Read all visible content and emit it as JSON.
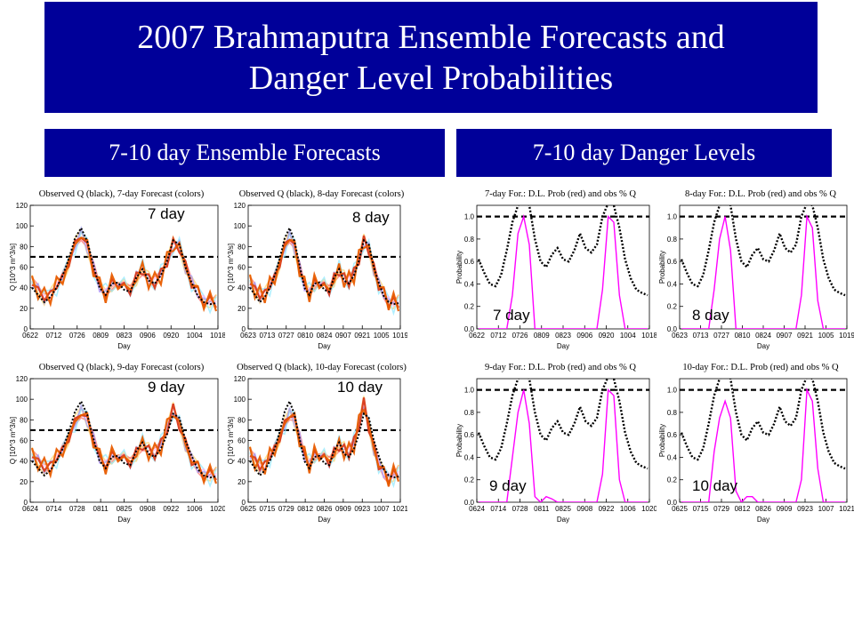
{
  "title": {
    "line1": "2007 Brahmaputra Ensemble Forecasts and",
    "line2": "Danger Level Probabilities"
  },
  "sections": {
    "left": "7-10 day Ensemble Forecasts",
    "right": "7-10 day Danger Levels"
  },
  "colors": {
    "banner": "#000099",
    "observed": "#000000",
    "danger_level": "#000000",
    "probability": "#ff00ff",
    "ensemble": [
      "#f2a36b",
      "#ff6b6b",
      "#ffd36b",
      "#8fe8ff",
      "#ffb0f0",
      "#9b9bff",
      "#d83a1a",
      "#e85c00"
    ]
  },
  "chart_data": [
    {
      "type": "line",
      "title": "Observed Q (black), 7-day Forecast (colors)",
      "label": "7 day",
      "xlabel": "Day",
      "ylabel": "Q [10^3 m^3/s]",
      "ylim": [
        0,
        120
      ],
      "yticks": [
        "0",
        "20",
        "40",
        "60",
        "80",
        "100",
        "120"
      ],
      "xticks": [
        "0622",
        "0712",
        "0726",
        "0809",
        "0823",
        "0906",
        "0920",
        "1004",
        "1018"
      ],
      "danger_level": 70,
      "observed_series": [
        40,
        33,
        26,
        31,
        40,
        52,
        68,
        88,
        98,
        85,
        62,
        40,
        33,
        44,
        45,
        38,
        36,
        50,
        58,
        47,
        44,
        52,
        66,
        86,
        82,
        60,
        45,
        32,
        26,
        24,
        25
      ],
      "forecast_series": [
        45,
        38,
        30,
        34,
        42,
        50,
        64,
        82,
        92,
        80,
        60,
        40,
        35,
        44,
        45,
        40,
        38,
        50,
        58,
        48,
        45,
        53,
        66,
        82,
        80,
        60,
        46,
        35,
        28,
        26,
        27
      ]
    },
    {
      "type": "line",
      "title": "Observed Q (black), 8-day Forecast (colors)",
      "label": "8 day",
      "xlabel": "Day",
      "ylabel": "Q [10^3 m^3/s]",
      "ylim": [
        0,
        120
      ],
      "yticks": [
        "0",
        "20",
        "40",
        "60",
        "80",
        "100",
        "120"
      ],
      "xticks": [
        "0623",
        "0713",
        "0727",
        "0810",
        "0824",
        "0907",
        "0921",
        "1005",
        "1019"
      ],
      "danger_level": 70,
      "observed_series": [
        40,
        33,
        26,
        31,
        40,
        52,
        68,
        88,
        98,
        85,
        62,
        40,
        33,
        44,
        45,
        38,
        36,
        50,
        58,
        47,
        44,
        52,
        66,
        86,
        82,
        60,
        45,
        32,
        26,
        24,
        25
      ],
      "forecast_series": [
        46,
        39,
        32,
        35,
        42,
        50,
        63,
        80,
        90,
        79,
        60,
        41,
        36,
        44,
        46,
        40,
        38,
        49,
        57,
        49,
        46,
        54,
        68,
        85,
        78,
        58,
        44,
        34,
        27,
        25,
        27
      ]
    },
    {
      "type": "line",
      "title": "Observed Q (black), 9-day Forecast (colors)",
      "label": "9 day",
      "xlabel": "Day",
      "ylabel": "Q [10^3 m^3/s]",
      "ylim": [
        0,
        120
      ],
      "yticks": [
        "0",
        "20",
        "40",
        "60",
        "80",
        "100",
        "120"
      ],
      "xticks": [
        "0624",
        "0714",
        "0728",
        "0811",
        "0825",
        "0908",
        "0922",
        "1006",
        "1020"
      ],
      "danger_level": 70,
      "observed_series": [
        40,
        33,
        26,
        31,
        40,
        52,
        68,
        88,
        98,
        85,
        62,
        40,
        33,
        44,
        45,
        38,
        36,
        50,
        58,
        47,
        44,
        52,
        66,
        86,
        82,
        60,
        45,
        32,
        26,
        24,
        25
      ],
      "forecast_series": [
        46,
        40,
        33,
        36,
        43,
        51,
        62,
        78,
        88,
        80,
        62,
        42,
        37,
        45,
        46,
        41,
        39,
        48,
        56,
        50,
        47,
        56,
        72,
        90,
        76,
        56,
        42,
        33,
        28,
        26,
        28
      ]
    },
    {
      "type": "line",
      "title": "Observed Q (black), 10-day Forecast (colors)",
      "label": "10 day",
      "xlabel": "Day",
      "ylabel": "Q [10^3 m^3/s]",
      "ylim": [
        0,
        120
      ],
      "yticks": [
        "0",
        "20",
        "40",
        "60",
        "80",
        "100",
        "120"
      ],
      "xticks": [
        "0625",
        "0715",
        "0729",
        "0812",
        "0826",
        "0909",
        "0923",
        "1007",
        "1021"
      ],
      "danger_level": 70,
      "observed_series": [
        40,
        33,
        26,
        31,
        40,
        52,
        68,
        88,
        98,
        85,
        62,
        40,
        33,
        44,
        45,
        38,
        36,
        50,
        58,
        47,
        44,
        52,
        66,
        86,
        82,
        60,
        45,
        32,
        26,
        24,
        25
      ],
      "forecast_series": [
        47,
        41,
        34,
        37,
        44,
        52,
        62,
        76,
        86,
        80,
        63,
        44,
        38,
        46,
        47,
        42,
        40,
        48,
        55,
        51,
        48,
        58,
        76,
        96,
        74,
        52,
        38,
        28,
        24,
        26,
        30
      ]
    },
    {
      "type": "line",
      "title": "7-day For.: D.L. Prob (red) and obs % Q",
      "label": "7 day",
      "xlabel": "Day",
      "ylabel": "Probability",
      "ylim": [
        0,
        1.1
      ],
      "yticks": [
        "0.0",
        "0.2",
        "0.4",
        "0.6",
        "0.8",
        "1.0"
      ],
      "xticks": [
        "0622",
        "0712",
        "0726",
        "0809",
        "0823",
        "0906",
        "0920",
        "1004",
        "1018"
      ],
      "danger_level": 1.0,
      "observed_pct_series": [
        0.62,
        0.5,
        0.4,
        0.38,
        0.48,
        0.7,
        0.95,
        1.1,
        1.15,
        1.1,
        0.8,
        0.6,
        0.55,
        0.66,
        0.72,
        0.62,
        0.6,
        0.7,
        0.85,
        0.72,
        0.68,
        0.75,
        1.0,
        1.12,
        1.1,
        0.9,
        0.62,
        0.45,
        0.35,
        0.32,
        0.3
      ],
      "probability_series": [
        0,
        0,
        0,
        0,
        0,
        0,
        0.3,
        0.85,
        1.0,
        0.75,
        0.0,
        0,
        0,
        0,
        0,
        0,
        0,
        0,
        0,
        0,
        0,
        0,
        0.35,
        1.0,
        0.95,
        0.3,
        0,
        0,
        0,
        0,
        0
      ]
    },
    {
      "type": "line",
      "title": "8-day For.: D.L. Prob (red) and obs % Q",
      "label": "8 day",
      "xlabel": "Day",
      "ylabel": "Probability",
      "ylim": [
        0,
        1.1
      ],
      "yticks": [
        "0.0",
        "0.2",
        "0.4",
        "0.6",
        "0.8",
        "1.0"
      ],
      "xticks": [
        "0623",
        "0713",
        "0727",
        "0810",
        "0824",
        "0907",
        "0921",
        "1005",
        "1019"
      ],
      "danger_level": 1.0,
      "observed_pct_series": [
        0.62,
        0.5,
        0.4,
        0.38,
        0.48,
        0.7,
        0.95,
        1.1,
        1.15,
        1.1,
        0.8,
        0.6,
        0.55,
        0.66,
        0.72,
        0.62,
        0.6,
        0.7,
        0.85,
        0.72,
        0.68,
        0.75,
        1.0,
        1.12,
        1.1,
        0.9,
        0.62,
        0.45,
        0.35,
        0.32,
        0.3
      ],
      "probability_series": [
        0,
        0,
        0,
        0,
        0,
        0,
        0.35,
        0.8,
        1.0,
        0.7,
        0.0,
        0,
        0,
        0,
        0,
        0,
        0,
        0,
        0,
        0,
        0,
        0,
        0.3,
        1.0,
        0.9,
        0.25,
        0,
        0,
        0,
        0,
        0
      ]
    },
    {
      "type": "line",
      "title": "9-day For.: D.L. Prob (red) and obs % Q",
      "label": "9 day",
      "xlabel": "Day",
      "ylabel": "Probability",
      "ylim": [
        0,
        1.1
      ],
      "yticks": [
        "0.0",
        "0.2",
        "0.4",
        "0.6",
        "0.8",
        "1.0"
      ],
      "xticks": [
        "0624",
        "0714",
        "0728",
        "0811",
        "0825",
        "0908",
        "0922",
        "1006",
        "1020"
      ],
      "danger_level": 1.0,
      "observed_pct_series": [
        0.62,
        0.5,
        0.4,
        0.38,
        0.48,
        0.7,
        0.95,
        1.1,
        1.15,
        1.1,
        0.8,
        0.6,
        0.55,
        0.66,
        0.72,
        0.62,
        0.6,
        0.7,
        0.85,
        0.72,
        0.68,
        0.75,
        1.0,
        1.12,
        1.1,
        0.9,
        0.62,
        0.45,
        0.35,
        0.32,
        0.3
      ],
      "probability_series": [
        0,
        0,
        0,
        0,
        0,
        0,
        0.4,
        0.8,
        1.0,
        0.7,
        0.05,
        0,
        0.05,
        0.03,
        0,
        0,
        0,
        0,
        0,
        0,
        0,
        0,
        0.25,
        1.0,
        0.95,
        0.2,
        0,
        0,
        0,
        0,
        0
      ]
    },
    {
      "type": "line",
      "title": "10-day For.: D.L. Prob (red) and obs % Q",
      "label": "10 day",
      "xlabel": "Day",
      "ylabel": "Probability",
      "ylim": [
        0,
        1.1
      ],
      "yticks": [
        "0.0",
        "0.2",
        "0.4",
        "0.6",
        "0.8",
        "1.0"
      ],
      "xticks": [
        "0625",
        "0715",
        "0729",
        "0812",
        "0826",
        "0909",
        "0923",
        "1007",
        "1021"
      ],
      "danger_level": 1.0,
      "observed_pct_series": [
        0.62,
        0.5,
        0.4,
        0.38,
        0.48,
        0.7,
        0.95,
        1.1,
        1.15,
        1.1,
        0.8,
        0.6,
        0.55,
        0.66,
        0.72,
        0.62,
        0.6,
        0.7,
        0.85,
        0.72,
        0.68,
        0.75,
        1.0,
        1.12,
        1.1,
        0.9,
        0.62,
        0.45,
        0.35,
        0.32,
        0.3
      ],
      "probability_series": [
        0,
        0,
        0,
        0,
        0,
        0,
        0.45,
        0.75,
        0.9,
        0.75,
        0.1,
        0,
        0.05,
        0.05,
        0,
        0,
        0,
        0,
        0,
        0,
        0,
        0,
        0.2,
        1.0,
        0.9,
        0.3,
        0,
        0,
        0,
        0,
        0
      ]
    }
  ]
}
